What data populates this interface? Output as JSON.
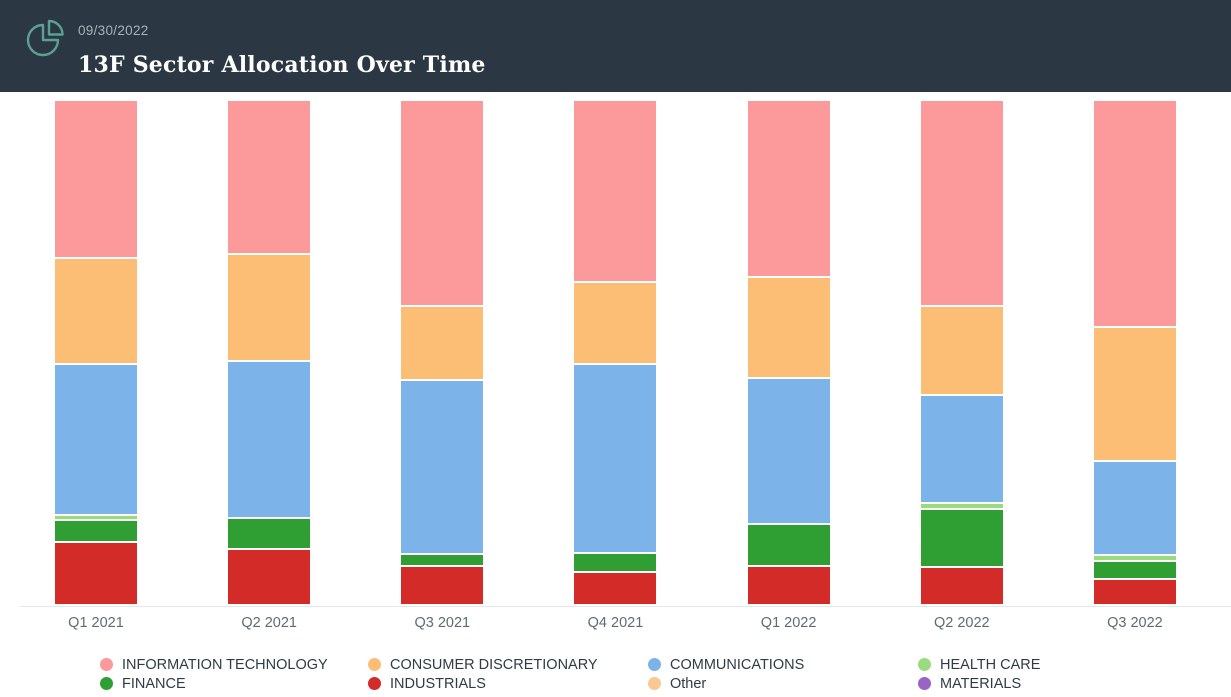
{
  "header": {
    "date": "09/30/2022",
    "title": "13F Sector Allocation Over Time",
    "background_color": "#2b3844",
    "icon": "pie-chart-icon",
    "icon_color": "#5ba193"
  },
  "chart_data": {
    "type": "bar",
    "stacked": true,
    "unit": "percent of portfolio",
    "ylim": [
      0,
      100
    ],
    "grid": false,
    "legend_position": "bottom",
    "axis_line_color": "#e3e7eb",
    "axis_label_color": "#5f6b74",
    "stack_order_top_to_bottom": [
      "INFORMATION TECHNOLOGY",
      "CONSUMER DISCRETIONARY",
      "COMMUNICATIONS",
      "HEALTH CARE",
      "FINANCE",
      "INDUSTRIALS",
      "Other",
      "MATERIALS"
    ],
    "categories": [
      "Q1 2021",
      "Q2 2021",
      "Q3 2021",
      "Q4 2021",
      "Q1 2022",
      "Q2 2022",
      "Q3 2022"
    ],
    "series": [
      {
        "name": "INFORMATION TECHNOLOGY",
        "color": "#fb999b",
        "values": [
          30.8,
          30.2,
          40.2,
          35.6,
          34.8,
          40.4,
          44.1
        ]
      },
      {
        "name": "CONSUMER DISCRETIONARY",
        "color": "#fcbd74",
        "values": [
          20.9,
          21.3,
          14.7,
          16.1,
          20.1,
          17.7,
          26.2
        ]
      },
      {
        "name": "COMMUNICATIONS",
        "color": "#7cb3e8",
        "values": [
          30.0,
          31.2,
          34.4,
          37.4,
          29.0,
          21.3,
          18.5
        ]
      },
      {
        "name": "HEALTH CARE",
        "color": "#9bdb80",
        "values": [
          1.0,
          0,
          0,
          0,
          0,
          1.2,
          1.2
        ]
      },
      {
        "name": "FINANCE",
        "color": "#2f9e33",
        "values": [
          4.2,
          6.2,
          2.4,
          3.6,
          8.3,
          11.5,
          3.6
        ]
      },
      {
        "name": "INDUSTRIALS",
        "color": "#d32b27",
        "values": [
          12.5,
          11.1,
          7.6,
          6.6,
          7.8,
          7.6,
          5.0
        ]
      },
      {
        "name": "Other",
        "color": "#fbc893",
        "values": [
          0,
          0,
          0,
          0,
          0,
          0,
          0
        ]
      },
      {
        "name": "MATERIALS",
        "color": "#9a63c6",
        "values": [
          0,
          0,
          0,
          0,
          0,
          0,
          0
        ]
      }
    ]
  }
}
